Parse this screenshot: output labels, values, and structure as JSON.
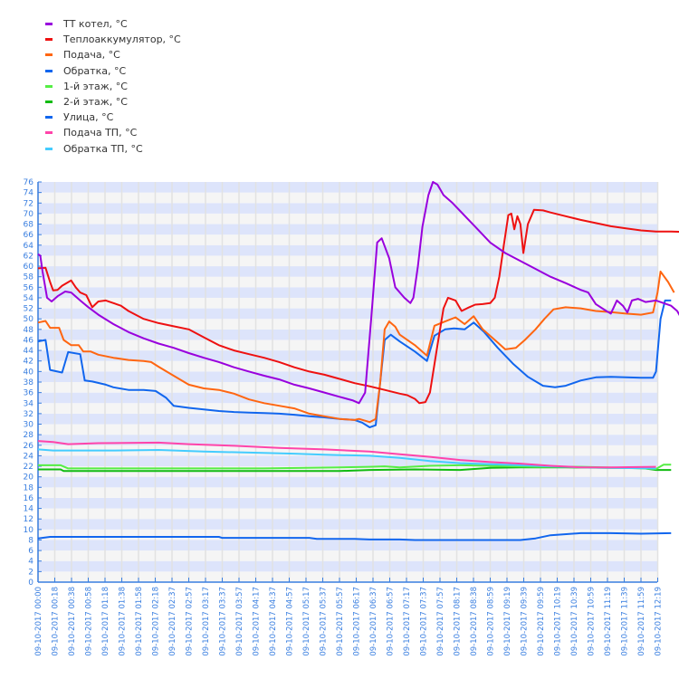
{
  "legend": [
    {
      "label": "ТТ котел, °C",
      "color": "#9900dd"
    },
    {
      "label": "Теплоаккумулятор, °C",
      "color": "#ee1111"
    },
    {
      "label": "Подача, °C",
      "color": "#ff6611"
    },
    {
      "label": "Обратка, °C",
      "color": "#1166ee"
    },
    {
      "label": "1-й этаж, °C",
      "color": "#55ee44"
    },
    {
      "label": "2-й этаж, °C",
      "color": "#11bb11"
    },
    {
      "label": "Улица, °C",
      "color": "#1166ee"
    },
    {
      "label": "Подача ТП, °C",
      "color": "#ff44aa"
    },
    {
      "label": "Обратка ТП, °C",
      "color": "#44ccff"
    }
  ],
  "chart_data": {
    "type": "line",
    "title": "",
    "xlabel": "",
    "ylabel": "",
    "ylim": [
      0,
      76
    ],
    "yticks": [
      0,
      2,
      4,
      6,
      8,
      10,
      12,
      14,
      16,
      18,
      20,
      22,
      24,
      26,
      28,
      30,
      32,
      34,
      36,
      38,
      40,
      42,
      44,
      46,
      48,
      50,
      52,
      54,
      56,
      58,
      60,
      62,
      64,
      66,
      68,
      70,
      72,
      74,
      76
    ],
    "grid": true,
    "legend_position": "top-left",
    "x": [
      "09-10-2017 00:00",
      "09-10-2017 00:18",
      "09-10-2017 00:38",
      "09-10-2017 00:58",
      "09-10-2017 01:18",
      "09-10-2017 01:38",
      "09-10-2017 01:58",
      "09-10-2017 02:18",
      "09-10-2017 02:37",
      "09-10-2017 02:57",
      "09-10-2017 03:17",
      "09-10-2017 03:37",
      "09-10-2017 03:57",
      "09-10-2017 04:17",
      "09-10-2017 04:37",
      "09-10-2017 04:57",
      "09-10-2017 05:17",
      "09-10-2017 05:37",
      "09-10-2017 05:57",
      "09-10-2017 06:17",
      "09-10-2017 06:37",
      "09-10-2017 06:57",
      "09-10-2017 07:17",
      "09-10-2017 07:37",
      "09-10-2017 07:57",
      "09-10-2017 08:17",
      "09-10-2017 08:38",
      "09-10-2017 08:59",
      "09-10-2017 09:19",
      "09-10-2017 09:39",
      "09-10-2017 09:59",
      "09-10-2017 10:19",
      "09-10-2017 10:39",
      "09-10-2017 10:59",
      "09-10-2017 11:19",
      "09-10-2017 11:39",
      "09-10-2017 11:59",
      "09-10-2017 12:19"
    ],
    "series": [
      {
        "name": "ТТ котел, °C",
        "color": "#9900dd",
        "points": [
          [
            0,
            62.3
          ],
          [
            0.15,
            62
          ],
          [
            0.3,
            59
          ],
          [
            0.6,
            54
          ],
          [
            0.9,
            53.3
          ],
          [
            1.3,
            54.3
          ],
          [
            1.8,
            55.2
          ],
          [
            2.2,
            55
          ],
          [
            2.8,
            53.5
          ],
          [
            3.3,
            52.3
          ],
          [
            4,
            50.8
          ],
          [
            5,
            49
          ],
          [
            6,
            47.5
          ],
          [
            7,
            46.3
          ],
          [
            8,
            45.3
          ],
          [
            9,
            44.5
          ],
          [
            10,
            43.5
          ],
          [
            11,
            42.6
          ],
          [
            12,
            41.8
          ],
          [
            13,
            40.8
          ],
          [
            14,
            40
          ],
          [
            15,
            39.2
          ],
          [
            16,
            38.5
          ],
          [
            17,
            37.5
          ],
          [
            18,
            36.8
          ],
          [
            19,
            36
          ],
          [
            20,
            35.2
          ],
          [
            20.9,
            34.5
          ],
          [
            21.3,
            34
          ],
          [
            21.7,
            36
          ],
          [
            22.1,
            50
          ],
          [
            22.5,
            64.5
          ],
          [
            22.8,
            65.3
          ],
          [
            23.3,
            61.5
          ],
          [
            23.7,
            56
          ],
          [
            24.3,
            54
          ],
          [
            24.7,
            53
          ],
          [
            24.9,
            54
          ],
          [
            25.2,
            60
          ],
          [
            25.5,
            67.5
          ],
          [
            25.9,
            73.5
          ],
          [
            26.2,
            76
          ],
          [
            26.5,
            75.5
          ],
          [
            26.9,
            73.5
          ],
          [
            27.5,
            72
          ],
          [
            28,
            70.5
          ],
          [
            28.5,
            69
          ],
          [
            29,
            67.5
          ],
          [
            29.5,
            66
          ],
          [
            30,
            64.5
          ],
          [
            31,
            62.5
          ],
          [
            32,
            61
          ],
          [
            33,
            59.5
          ],
          [
            34,
            58
          ],
          [
            35,
            56.8
          ],
          [
            36,
            55.5
          ],
          [
            36.5,
            55
          ],
          [
            37,
            52.8
          ],
          [
            37.7,
            51.5
          ],
          [
            38,
            51
          ],
          [
            38.4,
            53.5
          ],
          [
            38.8,
            52.5
          ],
          [
            39.1,
            51.2
          ],
          [
            39.4,
            53.5
          ],
          [
            39.8,
            53.8
          ],
          [
            40.3,
            53.2
          ],
          [
            41,
            53.5
          ],
          [
            41.5,
            53
          ],
          [
            42,
            52.5
          ],
          [
            42.4,
            51.5
          ],
          [
            42.8,
            49.5
          ],
          [
            43,
            49
          ],
          [
            43.2,
            48.5
          ]
        ]
      },
      {
        "name": "Теплоаккумулятор, °C",
        "color": "#ee1111",
        "points": [
          [
            0,
            59.6
          ],
          [
            0.5,
            59.7
          ],
          [
            0.8,
            57
          ],
          [
            1,
            55.4
          ],
          [
            1.3,
            55.5
          ],
          [
            1.6,
            56.3
          ],
          [
            2.2,
            57.3
          ],
          [
            2.5,
            56
          ],
          [
            2.8,
            55
          ],
          [
            3.2,
            54.5
          ],
          [
            3.6,
            52.2
          ],
          [
            4,
            53.3
          ],
          [
            4.5,
            53.5
          ],
          [
            5,
            53
          ],
          [
            5.5,
            52.5
          ],
          [
            6,
            51.5
          ],
          [
            7,
            50
          ],
          [
            8,
            49.2
          ],
          [
            9,
            48.6
          ],
          [
            10,
            48
          ],
          [
            11,
            46.5
          ],
          [
            12,
            45
          ],
          [
            13,
            44
          ],
          [
            14,
            43.3
          ],
          [
            15,
            42.6
          ],
          [
            16,
            41.8
          ],
          [
            17,
            40.8
          ],
          [
            18,
            40
          ],
          [
            19,
            39.4
          ],
          [
            20,
            38.6
          ],
          [
            21,
            37.8
          ],
          [
            22,
            37.2
          ],
          [
            23,
            36.5
          ],
          [
            24,
            35.8
          ],
          [
            24.5,
            35.5
          ],
          [
            25,
            34.8
          ],
          [
            25.3,
            34
          ],
          [
            25.7,
            34.2
          ],
          [
            26,
            36
          ],
          [
            26.5,
            45
          ],
          [
            26.9,
            52
          ],
          [
            27.2,
            54
          ],
          [
            27.7,
            53.5
          ],
          [
            28.1,
            51.5
          ],
          [
            28.6,
            52.2
          ],
          [
            29,
            52.7
          ],
          [
            29.5,
            52.8
          ],
          [
            30,
            53
          ],
          [
            30.3,
            54
          ],
          [
            30.6,
            58
          ],
          [
            30.9,
            64
          ],
          [
            31.2,
            69.7
          ],
          [
            31.4,
            70
          ],
          [
            31.6,
            67
          ],
          [
            31.8,
            69.5
          ],
          [
            32,
            68
          ],
          [
            32.2,
            62.5
          ],
          [
            32.5,
            68
          ],
          [
            32.9,
            70.7
          ],
          [
            33.5,
            70.6
          ],
          [
            34,
            70.2
          ],
          [
            35,
            69.5
          ],
          [
            36,
            68.8
          ],
          [
            37,
            68.2
          ],
          [
            38,
            67.6
          ],
          [
            39,
            67.2
          ],
          [
            40,
            66.8
          ],
          [
            41,
            66.6
          ],
          [
            42,
            66.6
          ],
          [
            43,
            66.5
          ],
          [
            43.8,
            66.5
          ],
          [
            44,
            66.8
          ],
          [
            44.4,
            66.3
          ],
          [
            44.6,
            65.8
          ]
        ]
      }
    ]
  }
}
